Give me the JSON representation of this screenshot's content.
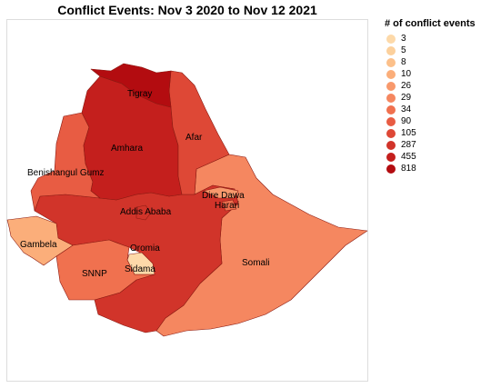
{
  "title": "Conflict Events: Nov 3 2020 to Nov 12 2021",
  "legend": {
    "title": "# of conflict events",
    "items": [
      {
        "label": "3",
        "color": "#fdd9a9"
      },
      {
        "label": "5",
        "color": "#fcd09c"
      },
      {
        "label": "8",
        "color": "#fcc08a"
      },
      {
        "label": "10",
        "color": "#fbae7a"
      },
      {
        "label": "26",
        "color": "#f8996c"
      },
      {
        "label": "29",
        "color": "#f58760"
      },
      {
        "label": "34",
        "color": "#f0714f"
      },
      {
        "label": "90",
        "color": "#e85c43"
      },
      {
        "label": "105",
        "color": "#de4836"
      },
      {
        "label": "287",
        "color": "#d1342a"
      },
      {
        "label": "455",
        "color": "#c41f1d"
      },
      {
        "label": "818",
        "color": "#b30c10"
      }
    ]
  },
  "regions": [
    {
      "name": "Tigray",
      "color": "#b30c10"
    },
    {
      "name": "Afar",
      "color": "#de4836"
    },
    {
      "name": "Amhara",
      "color": "#c41f1d"
    },
    {
      "name": "Benishangul Gumz",
      "color": "#e85c43"
    },
    {
      "name": "Addis Ababa",
      "color": "#d1342a"
    },
    {
      "name": "Dire Dawa",
      "color": "#f8996c"
    },
    {
      "name": "Harari",
      "color": "#f0714f"
    },
    {
      "name": "Gambela",
      "color": "#fbae7a"
    },
    {
      "name": "Oromia",
      "color": "#d1342a"
    },
    {
      "name": "Sidama",
      "color": "#fdd9a9"
    },
    {
      "name": "SNNP",
      "color": "#f0714f"
    },
    {
      "name": "Somali",
      "color": "#f58760"
    }
  ]
}
